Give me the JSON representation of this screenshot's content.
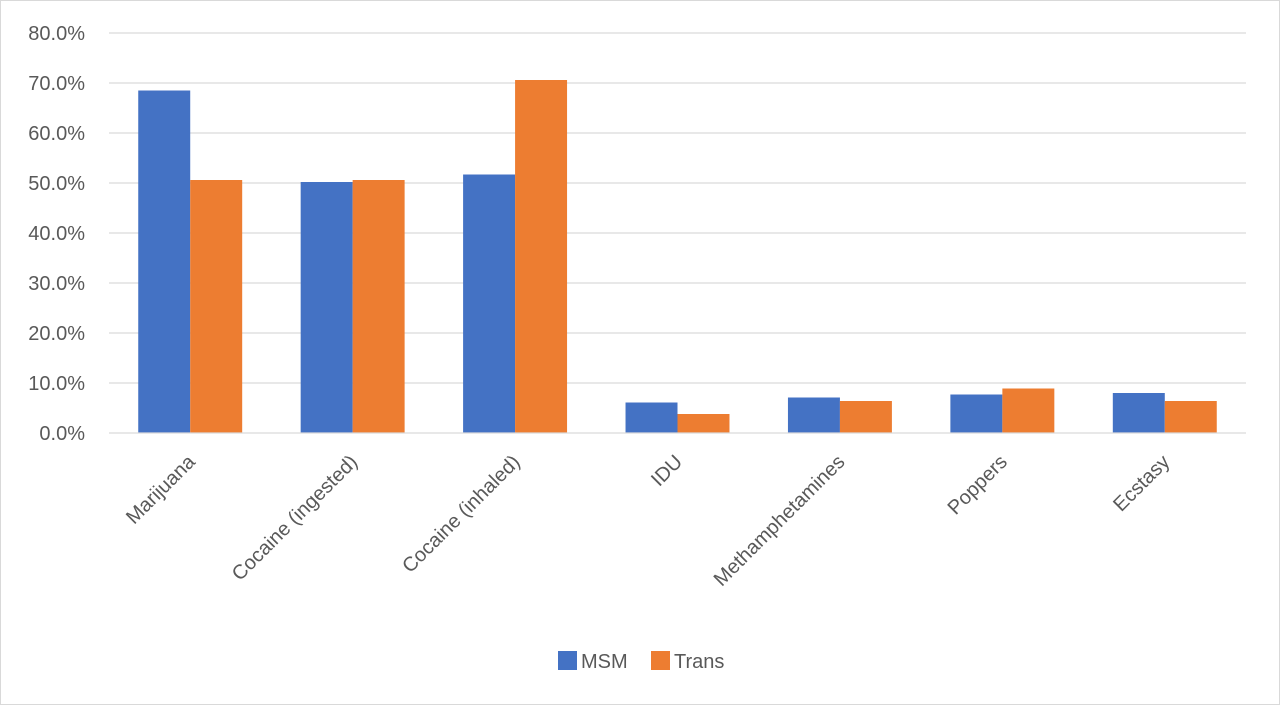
{
  "chart_data": {
    "type": "bar",
    "title": "",
    "xlabel": "",
    "ylabel": "",
    "categories": [
      "Marijuana",
      "Cocaine (ingested)",
      "Cocaine (inhaled)",
      "IDU",
      "Methamphetamines",
      "Poppers",
      "Ecstasy"
    ],
    "series": [
      {
        "name": "MSM",
        "color": "#4472c4",
        "values": [
          68.5,
          50.2,
          51.7,
          6.1,
          7.1,
          7.7,
          8.0
        ]
      },
      {
        "name": "Trans",
        "color": "#ed7d31",
        "values": [
          50.6,
          50.6,
          70.6,
          3.8,
          6.4,
          8.9,
          6.4
        ]
      }
    ],
    "ylim": [
      0,
      80
    ],
    "ytick_step": 10,
    "ytick_labels": [
      "0.0%",
      "10.0%",
      "20.0%",
      "30.0%",
      "40.0%",
      "50.0%",
      "60.0%",
      "70.0%",
      "80.0%"
    ],
    "grid": true,
    "legend_position": "bottom"
  }
}
